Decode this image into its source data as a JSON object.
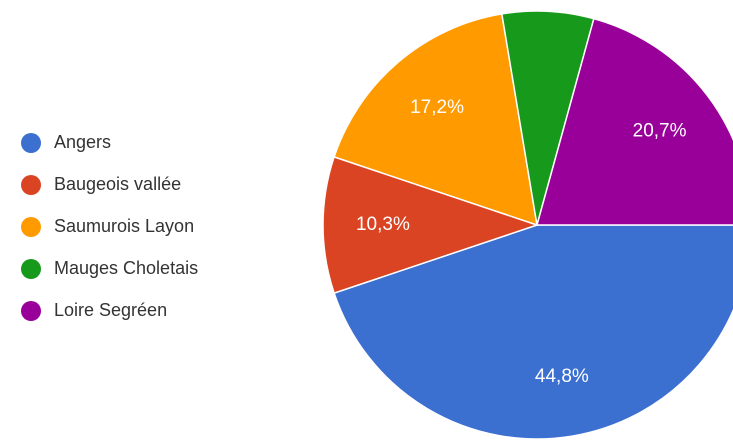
{
  "chart_data": {
    "type": "pie",
    "categories": [
      "Angers",
      "Baugeois vallée",
      "Saumurois Layon",
      "Mauges Choletais",
      "Loire Segréen"
    ],
    "values": [
      44.8,
      10.3,
      17.2,
      6.9,
      20.7
    ],
    "value_labels": [
      "44,8%",
      "10,3%",
      "17,2%",
      null,
      "20,7%"
    ],
    "colors": [
      "#3b6fd0",
      "#db4422",
      "#ff9a00",
      "#179a1b",
      "#990099"
    ],
    "legend": "left"
  }
}
